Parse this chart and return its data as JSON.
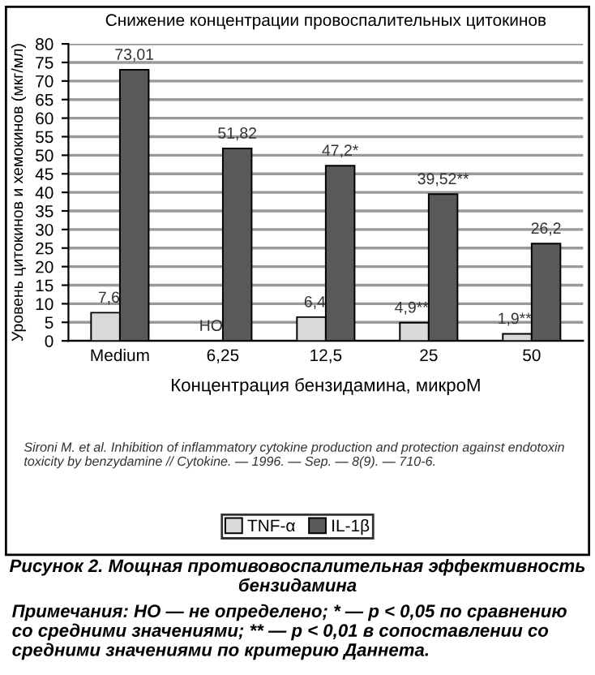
{
  "chart_data": {
    "type": "bar",
    "title": "Снижение концентрации провоспалительных цитокинов",
    "xlabel": "Концентрация бензидамина, микроМ",
    "ylabel": "Уровень цитокинов и хемокинов (мкг/мл)",
    "categories": [
      "Medium",
      "6,25",
      "12,5",
      "25",
      "50"
    ],
    "series": [
      {
        "name": "TNF-α",
        "color": "#d9d9d9",
        "values": [
          7.6,
          null,
          6.4,
          4.9,
          1.9
        ],
        "value_labels": [
          "7,6",
          "НО",
          "6,4",
          "4,9**",
          "1,9**"
        ]
      },
      {
        "name": "IL-1β",
        "color": "#595959",
        "values": [
          73.01,
          51.82,
          47.2,
          39.52,
          26.2
        ],
        "value_labels": [
          "73,01",
          "51,82",
          "47,2*",
          "39,52**",
          "26,2"
        ]
      }
    ],
    "ylim": [
      0,
      80
    ],
    "yticks": [
      0,
      5,
      10,
      15,
      20,
      25,
      30,
      35,
      40,
      45,
      50,
      55,
      60,
      65,
      70,
      75,
      80
    ],
    "grid": "y",
    "legend": "bottom",
    "annotations": [
      "Sironi M. et al. Inhibition of inflammatory cytokine production and protection against endotoxin toxicity by benzydamine // Cytokine. — 1996. — Sep. — 8(9). — 710-6.",
      "Рисунок 2. Мощная противовоспалительная эффективность бензидамина",
      "Примечания: НО — не определено; * — p < 0,05 по сравнению со средними значениями; ** — p < 0,01 в сопоставлении со средними значениями по критерию Даннета."
    ]
  }
}
